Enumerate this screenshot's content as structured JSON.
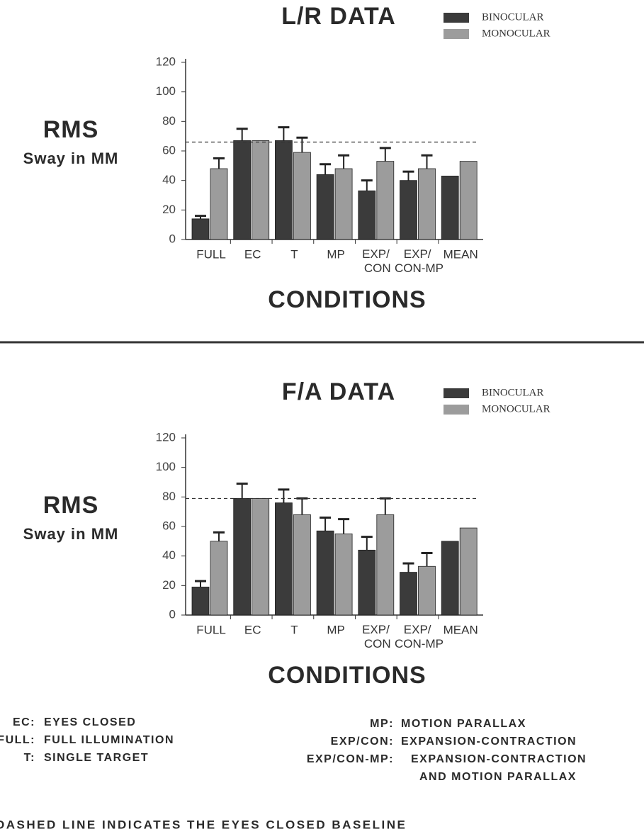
{
  "chart_data": [
    {
      "type": "bar",
      "title": "L/R DATA",
      "ylabel": [
        "RMS",
        "Sway in MM"
      ],
      "xlabel": "CONDITIONS",
      "categories": [
        "FULL",
        "EC",
        "T",
        "MP",
        "EXP/ CON",
        "EXP/ CON-MP",
        "MEAN"
      ],
      "series": [
        {
          "name": "BINOCULAR",
          "color": "#3b3b3b",
          "values": [
            14,
            67,
            67,
            44,
            33,
            40,
            43
          ],
          "errors": [
            2,
            8,
            9,
            7,
            7,
            6,
            null
          ]
        },
        {
          "name": "MONOCULAR",
          "color": "#9c9c9c",
          "values": [
            48,
            67,
            59,
            48,
            53,
            48,
            53
          ],
          "errors": [
            7,
            null,
            10,
            9,
            9,
            9,
            null
          ]
        }
      ],
      "baseline": 66,
      "ylim": [
        0,
        120
      ],
      "yticks": [
        0,
        20,
        40,
        60,
        80,
        100,
        120
      ]
    },
    {
      "type": "bar",
      "title": "F/A DATA",
      "ylabel": [
        "RMS",
        "Sway in MM"
      ],
      "xlabel": "CONDITIONS",
      "categories": [
        "FULL",
        "EC",
        "T",
        "MP",
        "EXP/ CON",
        "EXP/ CON-MP",
        "MEAN"
      ],
      "series": [
        {
          "name": "BINOCULAR",
          "color": "#3b3b3b",
          "values": [
            19,
            79,
            76,
            57,
            44,
            29,
            50
          ],
          "errors": [
            4,
            10,
            9,
            9,
            9,
            6,
            null
          ]
        },
        {
          "name": "MONOCULAR",
          "color": "#9c9c9c",
          "values": [
            50,
            79,
            68,
            55,
            68,
            33,
            59
          ],
          "errors": [
            6,
            null,
            11,
            10,
            11,
            9,
            null
          ]
        }
      ],
      "baseline": 79,
      "ylim": [
        0,
        120
      ],
      "yticks": [
        0,
        20,
        40,
        60,
        80,
        100,
        120
      ]
    }
  ],
  "notes": {
    "left": [
      {
        "abbr": "EC:",
        "text": [
          "EYES CLOSED"
        ]
      },
      {
        "abbr": "FULL:",
        "text": [
          "FULL ILLUMINATION"
        ]
      },
      {
        "abbr": "T:",
        "text": [
          "SINGLE TARGET"
        ]
      }
    ],
    "right": [
      {
        "abbr": "MP:",
        "text": [
          "MOTION PARALLAX"
        ]
      },
      {
        "abbr": "EXP/CON:",
        "text": [
          "EXPANSION-CONTRACTION"
        ]
      },
      {
        "abbr": "EXP/CON-MP:",
        "text": [
          "EXPANSION-CONTRACTION",
          "AND MOTION PARALLAX"
        ]
      }
    ],
    "baseline_note": "DASHED LINE INDICATES THE EYES CLOSED BASELINE"
  }
}
